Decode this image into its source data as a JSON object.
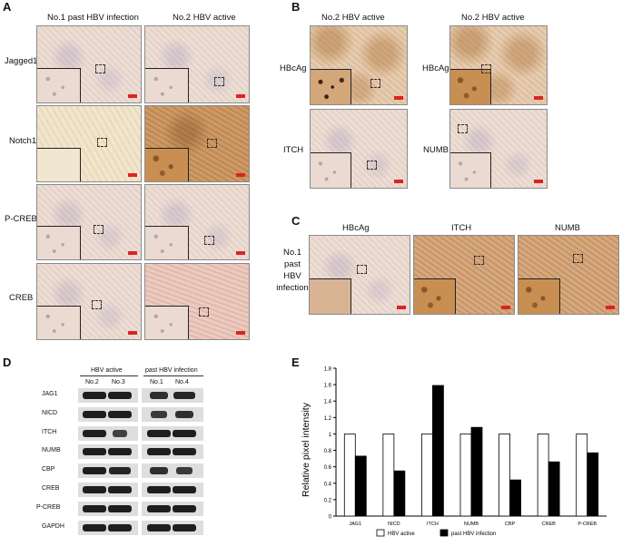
{
  "panels": {
    "A": "A",
    "B": "B",
    "C": "C",
    "D": "D",
    "E": "E"
  },
  "panelA": {
    "col_headers": [
      "No.1 past  HBV infection",
      "No.2 HBV active"
    ],
    "rows": [
      "Jagged1",
      "Notch1",
      "P-CREB",
      "CREB"
    ]
  },
  "panelB": {
    "col_headers": [
      "No.2 HBV active",
      "No.2 HBV active"
    ],
    "labels": [
      "HBcAg",
      "HBcAg",
      "ITCH",
      "NUMB"
    ]
  },
  "panelC": {
    "col_headers": [
      "HBcAg",
      "ITCH",
      "NUMB"
    ],
    "row_label": [
      "No.1",
      "past",
      "HBV",
      "infection"
    ]
  },
  "panelD": {
    "group_headers": [
      "HBV active",
      "past HBV infection"
    ],
    "lanes": [
      "No.2",
      "No.3",
      "No.1",
      "No.4"
    ],
    "proteins": [
      "JAG1",
      "NICD",
      "ITCH",
      "NUMB",
      "CBP",
      "CREB",
      "P-CREB",
      "GAPDH"
    ]
  },
  "chart_data": {
    "type": "bar",
    "categories": [
      "JAG1",
      "NICD",
      "ITCH",
      "NUMB",
      "CBP",
      "CREB",
      "P-CREB"
    ],
    "series": [
      {
        "name": "HBV active",
        "values": [
          1,
          1,
          1,
          1,
          1,
          1,
          1
        ],
        "color": "#ffffff"
      },
      {
        "name": "past HBV infection",
        "values": [
          0.73,
          0.55,
          1.59,
          1.08,
          0.44,
          0.66,
          0.77
        ],
        "color": "#000000"
      }
    ],
    "ylabel": "Relative pixel intensity",
    "ylim": [
      0,
      1.8
    ],
    "yticks": [
      "0",
      "0.2",
      "0.4",
      "0.6",
      "0.8",
      "1",
      "1.2",
      "1.4",
      "1.6",
      "1.8"
    ],
    "grid": false,
    "legend_position": "bottom"
  }
}
